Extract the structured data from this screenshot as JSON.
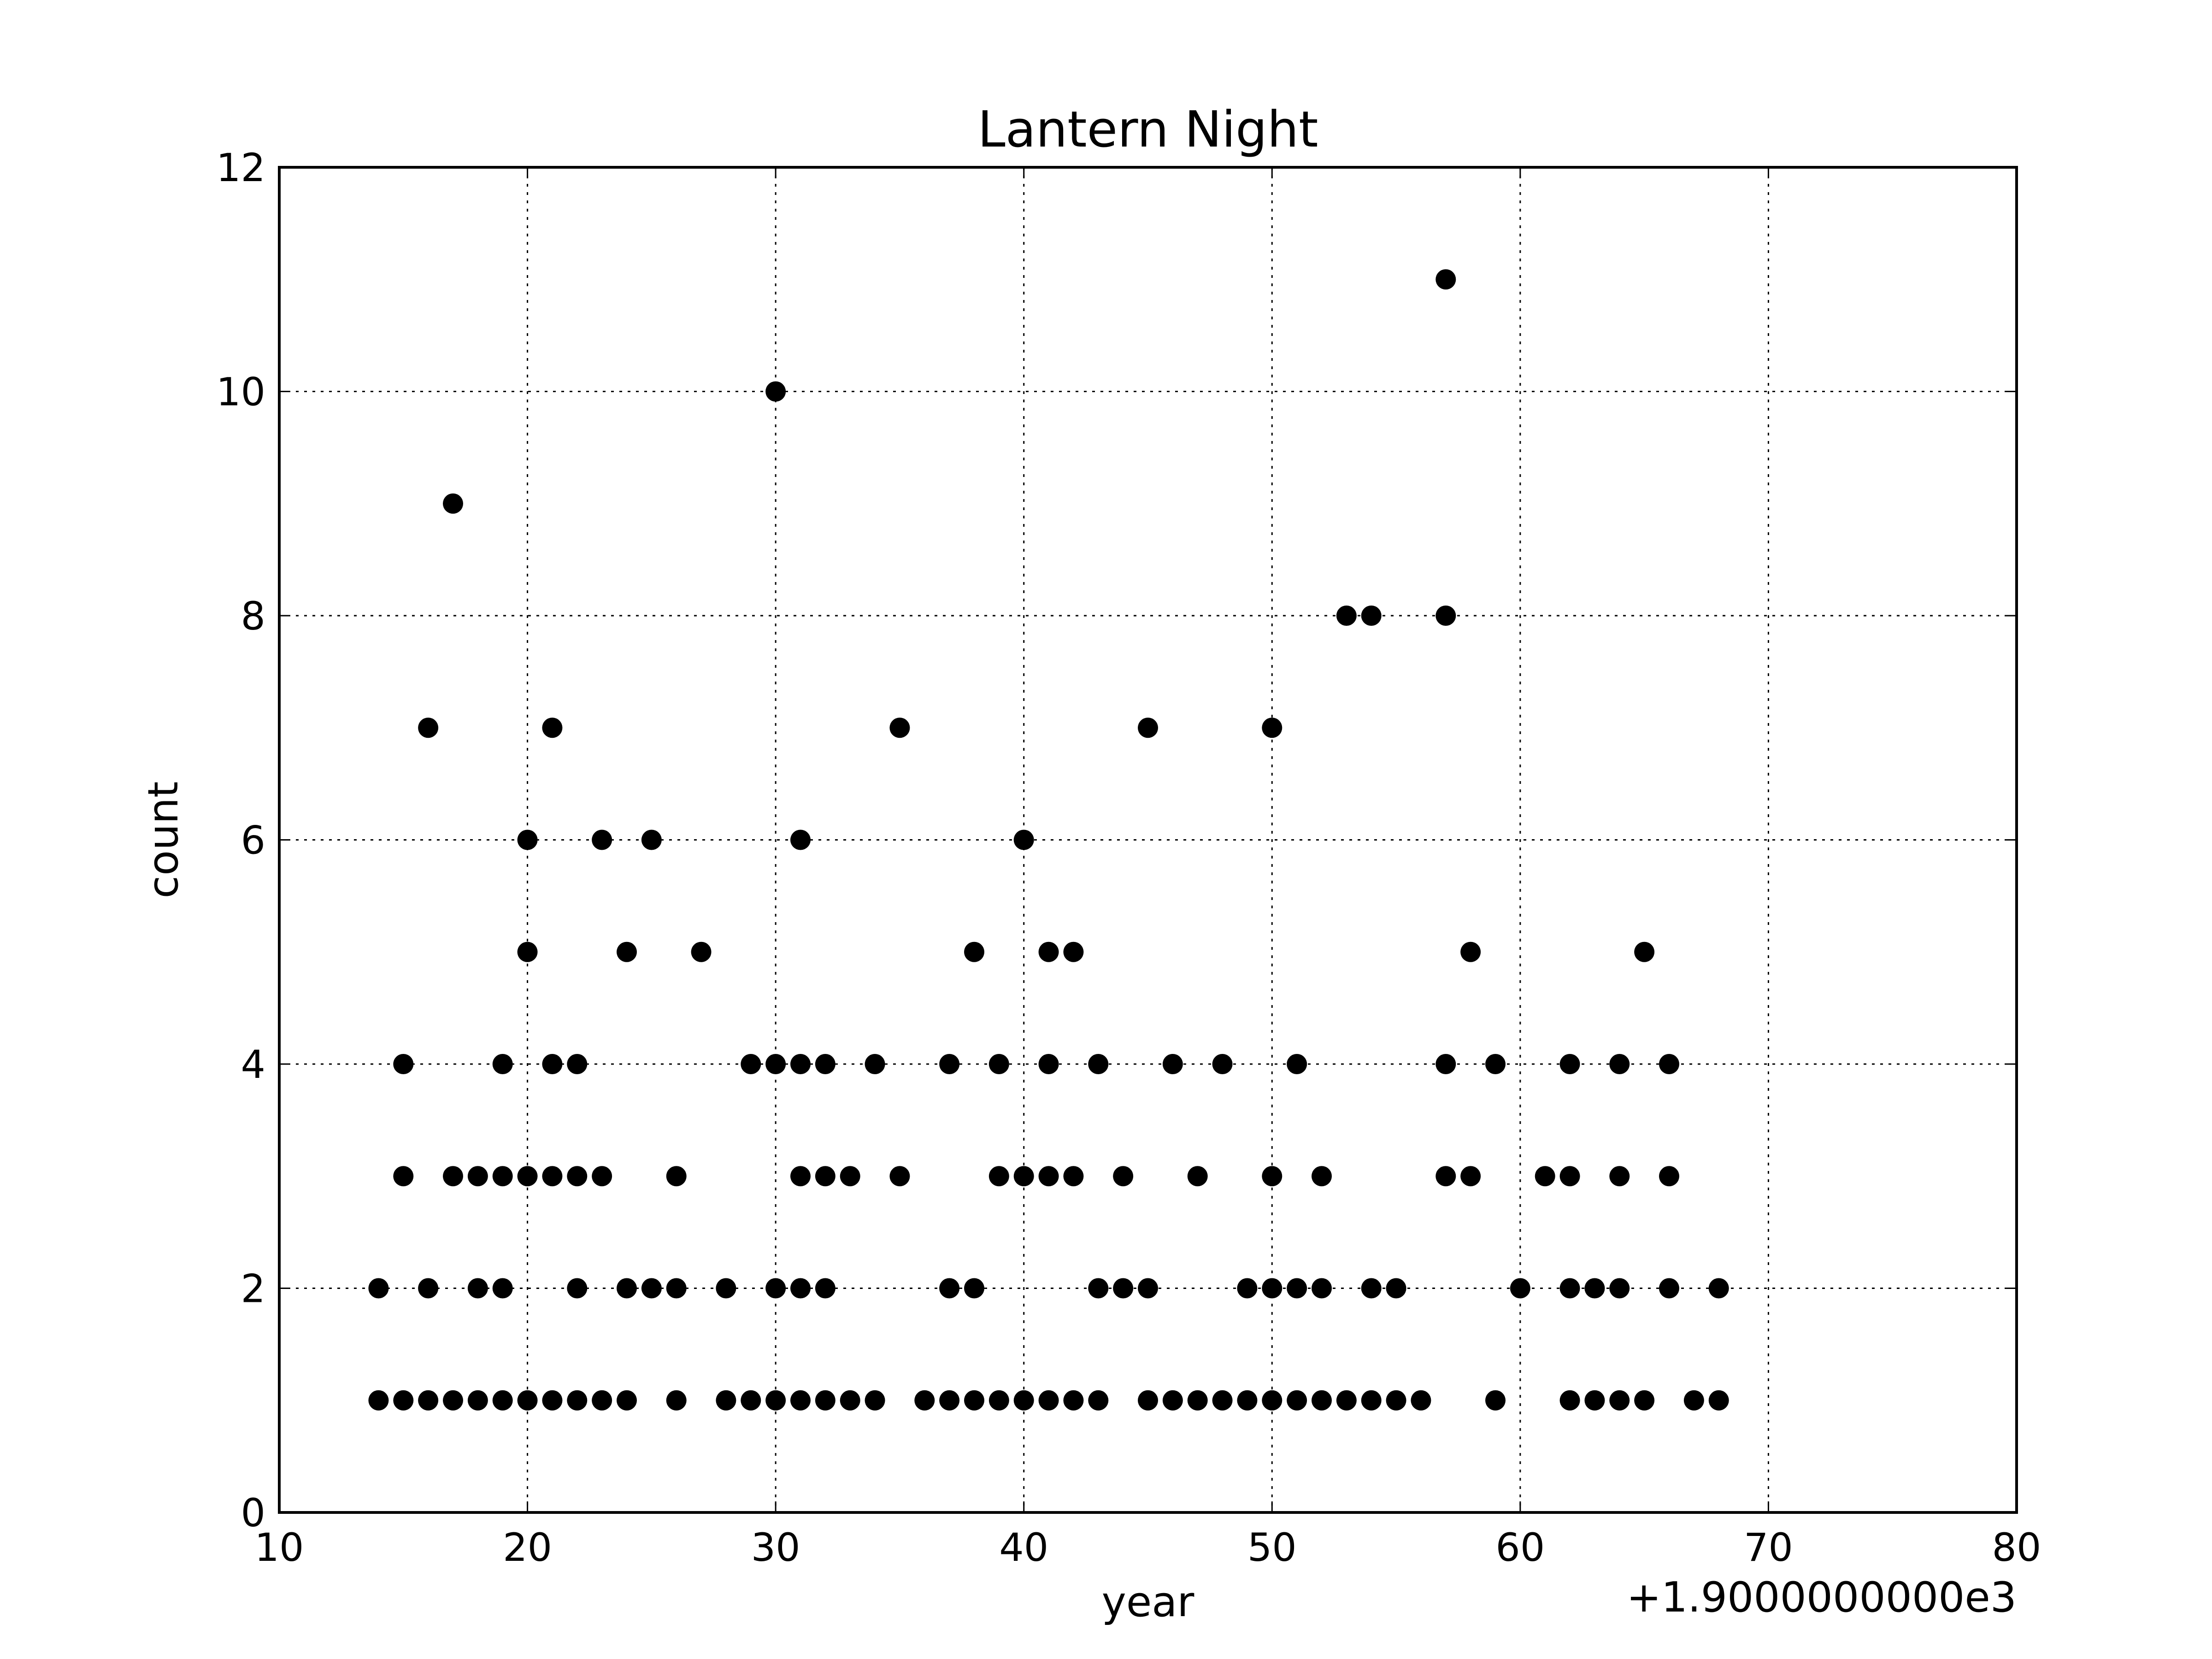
{
  "chart_data": {
    "type": "scatter",
    "title": "Lantern Night",
    "xlabel": "year",
    "ylabel": "count",
    "x_offset_label": "+1.9000000000e3",
    "xlim": [
      10,
      80
    ],
    "ylim": [
      0,
      12
    ],
    "xticks": [
      10,
      20,
      30,
      40,
      50,
      60,
      70,
      80
    ],
    "yticks": [
      0,
      2,
      4,
      6,
      8,
      10,
      12
    ],
    "grid": true,
    "marker_color": "#000000",
    "points": [
      [
        14,
        2
      ],
      [
        14,
        1
      ],
      [
        15,
        4
      ],
      [
        15,
        3
      ],
      [
        15,
        1
      ],
      [
        16,
        7
      ],
      [
        16,
        2
      ],
      [
        16,
        1
      ],
      [
        17,
        9
      ],
      [
        17,
        3
      ],
      [
        17,
        1
      ],
      [
        18,
        3
      ],
      [
        18,
        2
      ],
      [
        18,
        1
      ],
      [
        19,
        4
      ],
      [
        19,
        3
      ],
      [
        19,
        2
      ],
      [
        19,
        1
      ],
      [
        20,
        6
      ],
      [
        20,
        5
      ],
      [
        20,
        3
      ],
      [
        20,
        1
      ],
      [
        21,
        7
      ],
      [
        21,
        4
      ],
      [
        21,
        3
      ],
      [
        21,
        1
      ],
      [
        22,
        4
      ],
      [
        22,
        3
      ],
      [
        22,
        2
      ],
      [
        22,
        1
      ],
      [
        23,
        6
      ],
      [
        23,
        3
      ],
      [
        23,
        1
      ],
      [
        24,
        5
      ],
      [
        24,
        2
      ],
      [
        24,
        1
      ],
      [
        25,
        6
      ],
      [
        25,
        2
      ],
      [
        26,
        3
      ],
      [
        26,
        2
      ],
      [
        26,
        1
      ],
      [
        27,
        5
      ],
      [
        28,
        2
      ],
      [
        28,
        1
      ],
      [
        29,
        4
      ],
      [
        29,
        1
      ],
      [
        30,
        10
      ],
      [
        30,
        4
      ],
      [
        30,
        2
      ],
      [
        30,
        1
      ],
      [
        31,
        6
      ],
      [
        31,
        4
      ],
      [
        31,
        3
      ],
      [
        31,
        2
      ],
      [
        31,
        1
      ],
      [
        32,
        4
      ],
      [
        32,
        3
      ],
      [
        32,
        2
      ],
      [
        32,
        1
      ],
      [
        33,
        3
      ],
      [
        33,
        1
      ],
      [
        34,
        4
      ],
      [
        34,
        1
      ],
      [
        35,
        7
      ],
      [
        35,
        3
      ],
      [
        36,
        1
      ],
      [
        37,
        4
      ],
      [
        37,
        2
      ],
      [
        37,
        1
      ],
      [
        38,
        5
      ],
      [
        38,
        2
      ],
      [
        38,
        1
      ],
      [
        39,
        4
      ],
      [
        39,
        3
      ],
      [
        39,
        1
      ],
      [
        40,
        6
      ],
      [
        40,
        3
      ],
      [
        40,
        1
      ],
      [
        41,
        5
      ],
      [
        41,
        4
      ],
      [
        41,
        3
      ],
      [
        41,
        1
      ],
      [
        42,
        5
      ],
      [
        42,
        3
      ],
      [
        42,
        1
      ],
      [
        43,
        4
      ],
      [
        43,
        2
      ],
      [
        43,
        1
      ],
      [
        44,
        3
      ],
      [
        44,
        2
      ],
      [
        45,
        7
      ],
      [
        45,
        2
      ],
      [
        45,
        1
      ],
      [
        46,
        4
      ],
      [
        46,
        1
      ],
      [
        47,
        3
      ],
      [
        47,
        1
      ],
      [
        48,
        4
      ],
      [
        48,
        1
      ],
      [
        49,
        2
      ],
      [
        49,
        1
      ],
      [
        50,
        7
      ],
      [
        50,
        3
      ],
      [
        50,
        2
      ],
      [
        50,
        1
      ],
      [
        51,
        4
      ],
      [
        51,
        2
      ],
      [
        51,
        1
      ],
      [
        52,
        3
      ],
      [
        52,
        2
      ],
      [
        52,
        1
      ],
      [
        53,
        8
      ],
      [
        53,
        1
      ],
      [
        54,
        8
      ],
      [
        54,
        2
      ],
      [
        54,
        1
      ],
      [
        55,
        2
      ],
      [
        55,
        1
      ],
      [
        56,
        1
      ],
      [
        57,
        11
      ],
      [
        57,
        8
      ],
      [
        57,
        4
      ],
      [
        57,
        3
      ],
      [
        58,
        5
      ],
      [
        58,
        3
      ],
      [
        59,
        4
      ],
      [
        59,
        1
      ],
      [
        60,
        2
      ],
      [
        61,
        3
      ],
      [
        62,
        4
      ],
      [
        62,
        3
      ],
      [
        62,
        2
      ],
      [
        62,
        1
      ],
      [
        63,
        2
      ],
      [
        63,
        1
      ],
      [
        64,
        4
      ],
      [
        64,
        3
      ],
      [
        64,
        2
      ],
      [
        64,
        1
      ],
      [
        65,
        5
      ],
      [
        65,
        1
      ],
      [
        66,
        4
      ],
      [
        66,
        3
      ],
      [
        66,
        2
      ],
      [
        67,
        1
      ],
      [
        68,
        2
      ],
      [
        68,
        1
      ]
    ]
  }
}
